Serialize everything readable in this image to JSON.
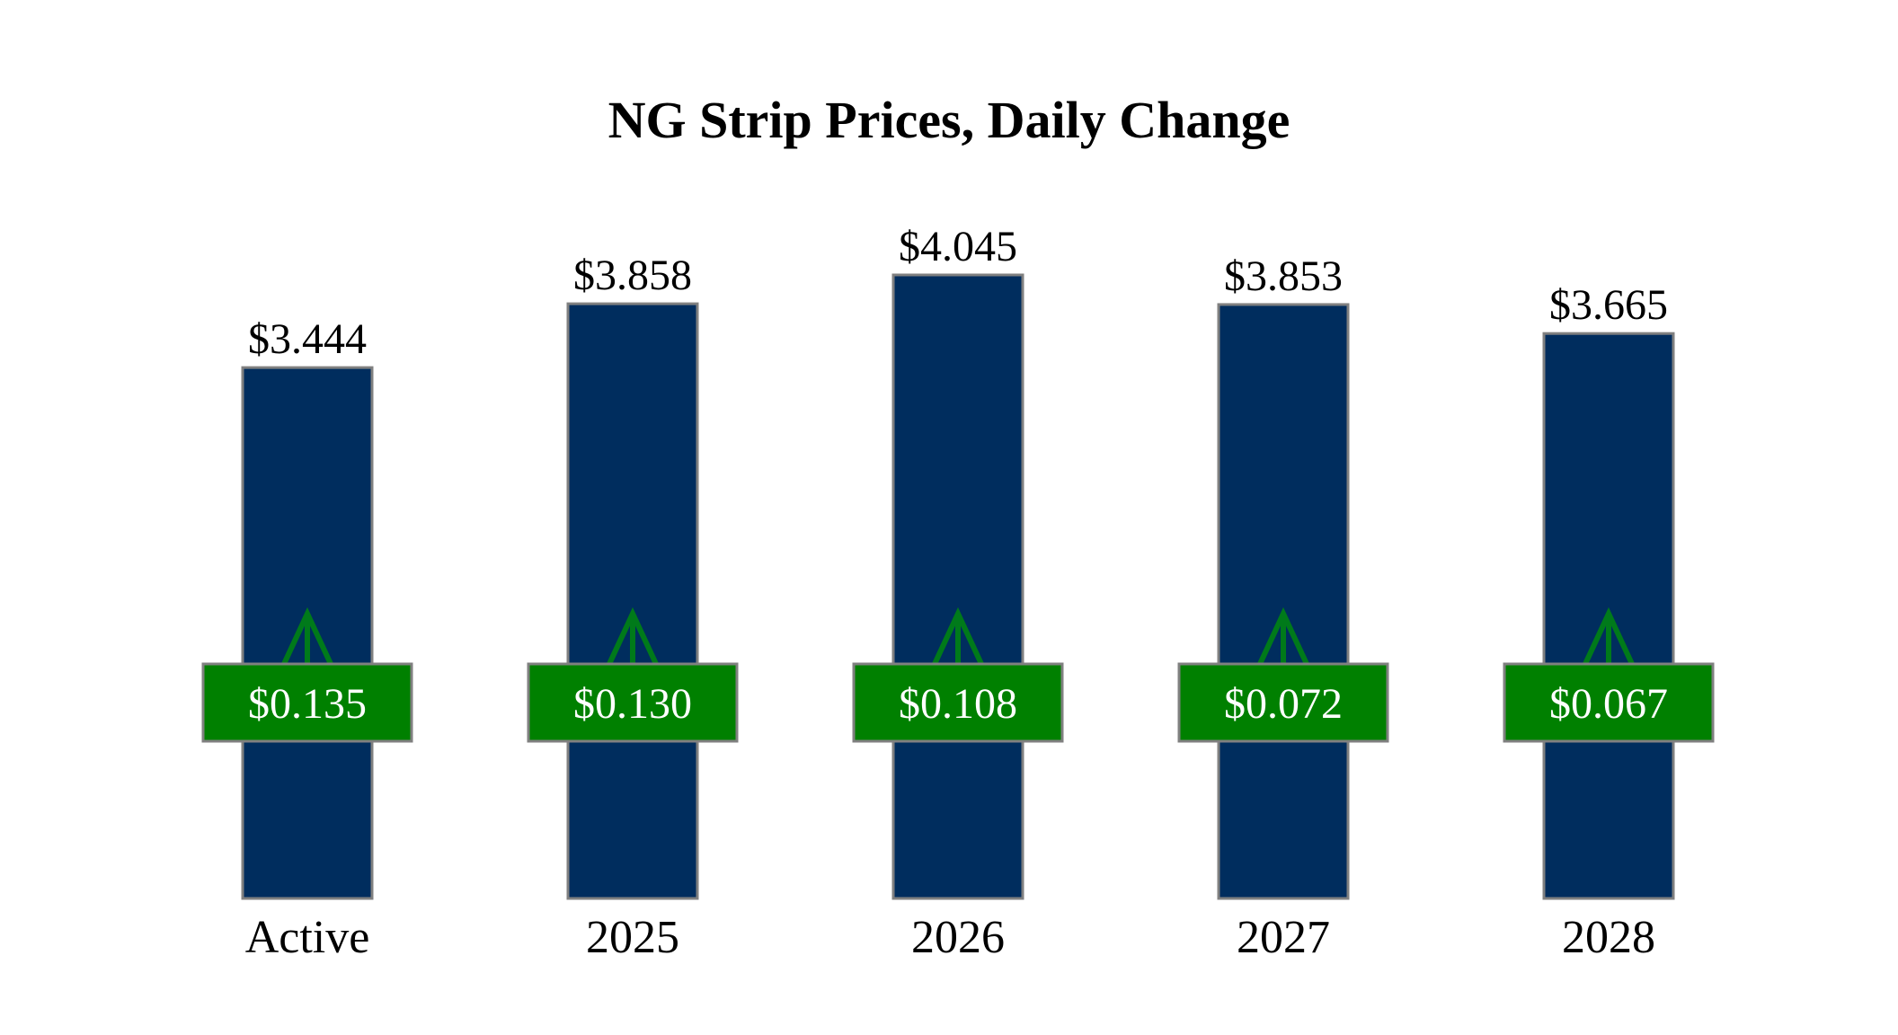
{
  "chart_data": {
    "type": "bar",
    "title": "NG Strip Prices, Daily Change",
    "categories": [
      "Active",
      "2025",
      "2026",
      "2027",
      "2028"
    ],
    "values": [
      3.444,
      3.858,
      4.045,
      3.853,
      3.665
    ],
    "value_labels": [
      "$3.444",
      "$3.858",
      "$4.045",
      "$3.853",
      "$3.665"
    ],
    "changes": [
      0.135,
      0.13,
      0.108,
      0.072,
      0.067
    ],
    "change_labels": [
      "$0.135",
      "$0.130",
      "$0.108",
      "$0.072",
      "$0.067"
    ],
    "change_direction": [
      "up",
      "up",
      "up",
      "up",
      "up"
    ],
    "xlabel": "",
    "ylabel": "",
    "ylim": [
      0,
      4.045
    ],
    "grid": false,
    "legend": "none",
    "colors": {
      "bar": "#002d5e",
      "bar_border": "#808080",
      "change_box": "#008000",
      "change_box_border": "#808080",
      "arrow": "#007a1a",
      "change_text": "#ffffff"
    }
  }
}
